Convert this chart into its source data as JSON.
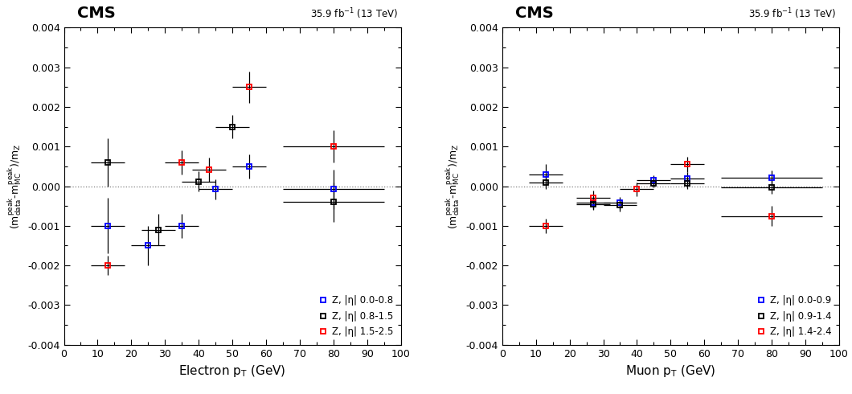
{
  "electron": {
    "blue": {
      "color": "blue",
      "x": [
        13,
        25,
        35,
        45,
        55,
        80
      ],
      "y": [
        -0.001,
        -0.0015,
        -0.001,
        -8e-05,
        0.0005,
        -8e-05
      ],
      "xerr": [
        5,
        5,
        5,
        5,
        5,
        15
      ],
      "yerr": [
        0.0007,
        0.0005,
        0.0003,
        0.00025,
        0.0003,
        0.0005
      ]
    },
    "black": {
      "color": "black",
      "x": [
        13,
        28,
        40,
        50,
        80
      ],
      "y": [
        0.0006,
        -0.0011,
        0.00012,
        0.0015,
        -0.0004
      ],
      "xerr": [
        5,
        5,
        5,
        5,
        15
      ],
      "yerr": [
        0.0006,
        0.0004,
        0.00025,
        0.0003,
        0.0005
      ]
    },
    "red": {
      "color": "red",
      "x": [
        13,
        35,
        43,
        55,
        80
      ],
      "y": [
        -0.002,
        0.0006,
        0.00042,
        0.0025,
        0.001
      ],
      "xerr": [
        5,
        5,
        5,
        5,
        15
      ],
      "yerr": [
        0.00025,
        0.0003,
        0.0003,
        0.0004,
        0.0004
      ]
    }
  },
  "muon": {
    "blue": {
      "color": "blue",
      "x": [
        13,
        27,
        35,
        45,
        55,
        80
      ],
      "y": [
        0.0003,
        -0.00042,
        -0.00042,
        0.00015,
        0.0002,
        0.00022
      ],
      "xerr": [
        5,
        5,
        5,
        5,
        5,
        15
      ],
      "yerr": [
        0.00025,
        0.00015,
        0.00015,
        0.00012,
        0.00015,
        0.00018
      ]
    },
    "black": {
      "color": "black",
      "x": [
        13,
        27,
        35,
        45,
        55,
        80
      ],
      "y": [
        0.0001,
        -0.00045,
        -0.00048,
        8e-05,
        8e-05,
        -2e-05
      ],
      "xerr": [
        5,
        5,
        5,
        5,
        5,
        15
      ],
      "yerr": [
        0.00018,
        0.00015,
        0.00015,
        0.00012,
        0.00015,
        0.00018
      ]
    },
    "red": {
      "color": "red",
      "x": [
        13,
        27,
        40,
        55,
        80
      ],
      "y": [
        -0.001,
        -0.0003,
        -8e-05,
        0.00055,
        -0.00075
      ],
      "xerr": [
        5,
        5,
        5,
        5,
        15
      ],
      "yerr": [
        0.00018,
        0.00018,
        0.00018,
        0.0002,
        0.00025
      ]
    }
  },
  "electron_legend": [
    "Z, |#eta| 0.0-0.8",
    "Z, |#eta| 0.8-1.5",
    "Z, |#eta| 1.5-2.5"
  ],
  "muon_legend": [
    "Z, |#eta| 0.0-0.9",
    "Z, |#eta| 0.9-1.4",
    "Z, |#eta| 1.4-2.4"
  ],
  "ylabel": "(m$_{\\rm data}^{\\rm peak}$-m$_{\\rm MC}^{\\rm peak}$)/m$_{\\rm Z}$",
  "xlabel_electron": "Electron p$_{\\rm T}$ (GeV)",
  "xlabel_muon": "Muon p$_{\\rm T}$ (GeV)",
  "ylim": [
    -0.004,
    0.004
  ],
  "xlim": [
    0,
    100
  ],
  "cms_label": "CMS",
  "lumi_label": "35.9 fb$^{-1}$ (13 TeV)"
}
